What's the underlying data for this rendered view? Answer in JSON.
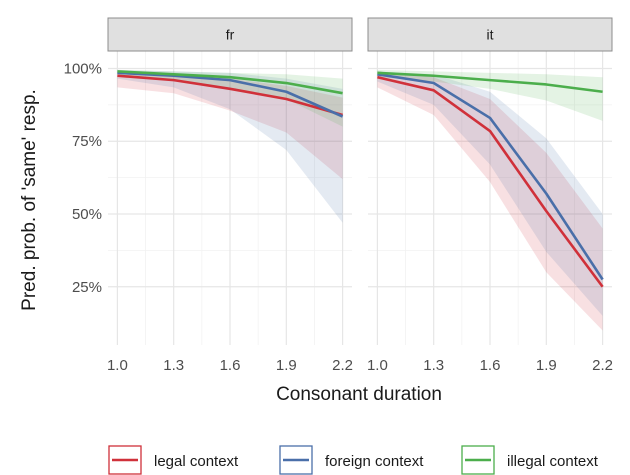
{
  "chart_data": {
    "type": "line",
    "xlabel": "Consonant duration",
    "ylabel": "Pred. prob. of 'same' resp.",
    "x_ticks": [
      "1.0",
      "1.3",
      "1.6",
      "1.9",
      "2.2"
    ],
    "x": [
      1.0,
      1.3,
      1.6,
      1.9,
      2.2
    ],
    "xlim": [
      0.95,
      2.25
    ],
    "ylim": [
      0.05,
      1.06
    ],
    "y_ticks": [
      {
        "value": 0.25,
        "label": "25%"
      },
      {
        "value": 0.5,
        "label": "50%"
      },
      {
        "value": 0.75,
        "label": "75%"
      },
      {
        "value": 1.0,
        "label": "100%"
      }
    ],
    "grid": true,
    "legend_position": "bottom",
    "panels": [
      {
        "label": "fr",
        "series": [
          {
            "name": "legal context",
            "color": "#D0313A",
            "values": [
              0.975,
              0.96,
              0.93,
              0.895,
              0.84
            ],
            "lower": [
              0.935,
              0.915,
              0.855,
              0.78,
              0.62
            ],
            "upper": [
              0.99,
              0.98,
              0.965,
              0.94,
              0.9
            ]
          },
          {
            "name": "foreign context",
            "color": "#4A6FA9",
            "values": [
              0.985,
              0.975,
              0.96,
              0.92,
              0.835
            ],
            "lower": [
              0.965,
              0.935,
              0.86,
              0.72,
              0.47
            ],
            "upper": [
              0.995,
              0.99,
              0.985,
              0.965,
              0.93
            ]
          },
          {
            "name": "illegal context",
            "color": "#4CAE4C",
            "values": [
              0.99,
              0.98,
              0.97,
              0.95,
              0.915
            ],
            "lower": [
              0.975,
              0.96,
              0.935,
              0.895,
              0.8
            ],
            "upper": [
              0.995,
              0.99,
              0.985,
              0.98,
              0.965
            ]
          }
        ]
      },
      {
        "label": "it",
        "series": [
          {
            "name": "legal context",
            "color": "#D0313A",
            "values": [
              0.97,
              0.925,
              0.785,
              0.51,
              0.25
            ],
            "lower": [
              0.935,
              0.84,
              0.61,
              0.3,
              0.1
            ],
            "upper": [
              0.99,
              0.97,
              0.895,
              0.71,
              0.45
            ]
          },
          {
            "name": "foreign context",
            "color": "#4A6FA9",
            "values": [
              0.98,
              0.95,
              0.83,
              0.57,
              0.275
            ],
            "lower": [
              0.955,
              0.875,
              0.67,
              0.37,
              0.15
            ],
            "upper": [
              0.99,
              0.98,
              0.92,
              0.76,
              0.5
            ]
          },
          {
            "name": "illegal context",
            "color": "#4CAE4C",
            "values": [
              0.985,
              0.975,
              0.96,
              0.945,
              0.92
            ],
            "lower": [
              0.97,
              0.955,
              0.93,
              0.89,
              0.82
            ],
            "upper": [
              0.995,
              0.99,
              0.985,
              0.98,
              0.97
            ]
          }
        ]
      }
    ],
    "legend": [
      {
        "name": "legal context",
        "color": "#D0313A"
      },
      {
        "name": "foreign context",
        "color": "#4A6FA9"
      },
      {
        "name": "illegal context",
        "color": "#4CAE4C"
      }
    ]
  }
}
